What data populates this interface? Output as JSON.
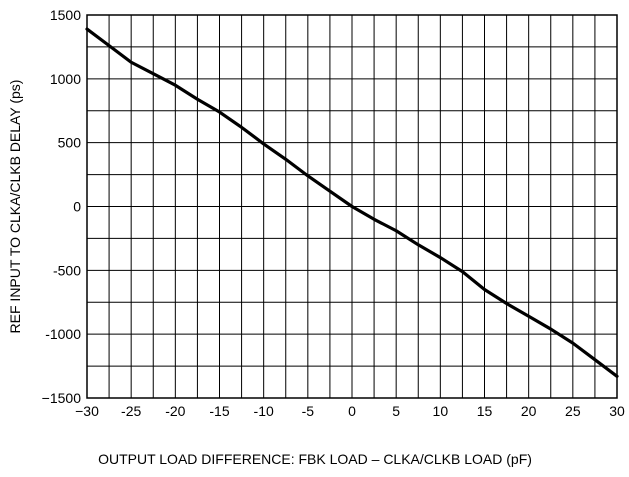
{
  "chart_data": {
    "type": "line",
    "xlabel": "OUTPUT LOAD DIFFERENCE: FBK LOAD – CLKA/CLKB LOAD (pF)",
    "ylabel": "REF INPUT TO CLKA/CLKB DELAY (ps)",
    "xlim": [
      -30,
      30
    ],
    "ylim": [
      -1500,
      1500
    ],
    "x_ticks": [
      -30,
      -25,
      -20,
      -15,
      -10,
      -5,
      0,
      5,
      10,
      15,
      20,
      25,
      30
    ],
    "x_tick_labels": [
      "−30",
      "-25",
      "-20",
      "-15",
      "-10",
      "-5",
      "0",
      "5",
      "10",
      "15",
      "20",
      "25",
      "30"
    ],
    "y_ticks": [
      -1500,
      -1000,
      -500,
      0,
      500,
      1000,
      1500
    ],
    "y_tick_labels": [
      "−1500",
      "-1000",
      "-500",
      "0",
      "500",
      "1000",
      "1500"
    ],
    "x_minor_step": 2.5,
    "y_minor_step": 250,
    "grid": true,
    "line_color": "#000000",
    "series": [
      {
        "x": [
          -30,
          -27.5,
          -25,
          -22.5,
          -20,
          -17.5,
          -15,
          -12.5,
          -10,
          -7.5,
          -5,
          -2.5,
          0,
          2.5,
          5,
          7.5,
          10,
          12.5,
          15,
          17.5,
          20,
          22.5,
          25,
          27.5,
          30
        ],
        "y": [
          1390,
          1260,
          1130,
          1040,
          950,
          840,
          740,
          620,
          490,
          370,
          240,
          120,
          0,
          -100,
          -190,
          -300,
          -400,
          -510,
          -650,
          -760,
          -860,
          -960,
          -1070,
          -1200,
          -1330
        ]
      }
    ]
  }
}
